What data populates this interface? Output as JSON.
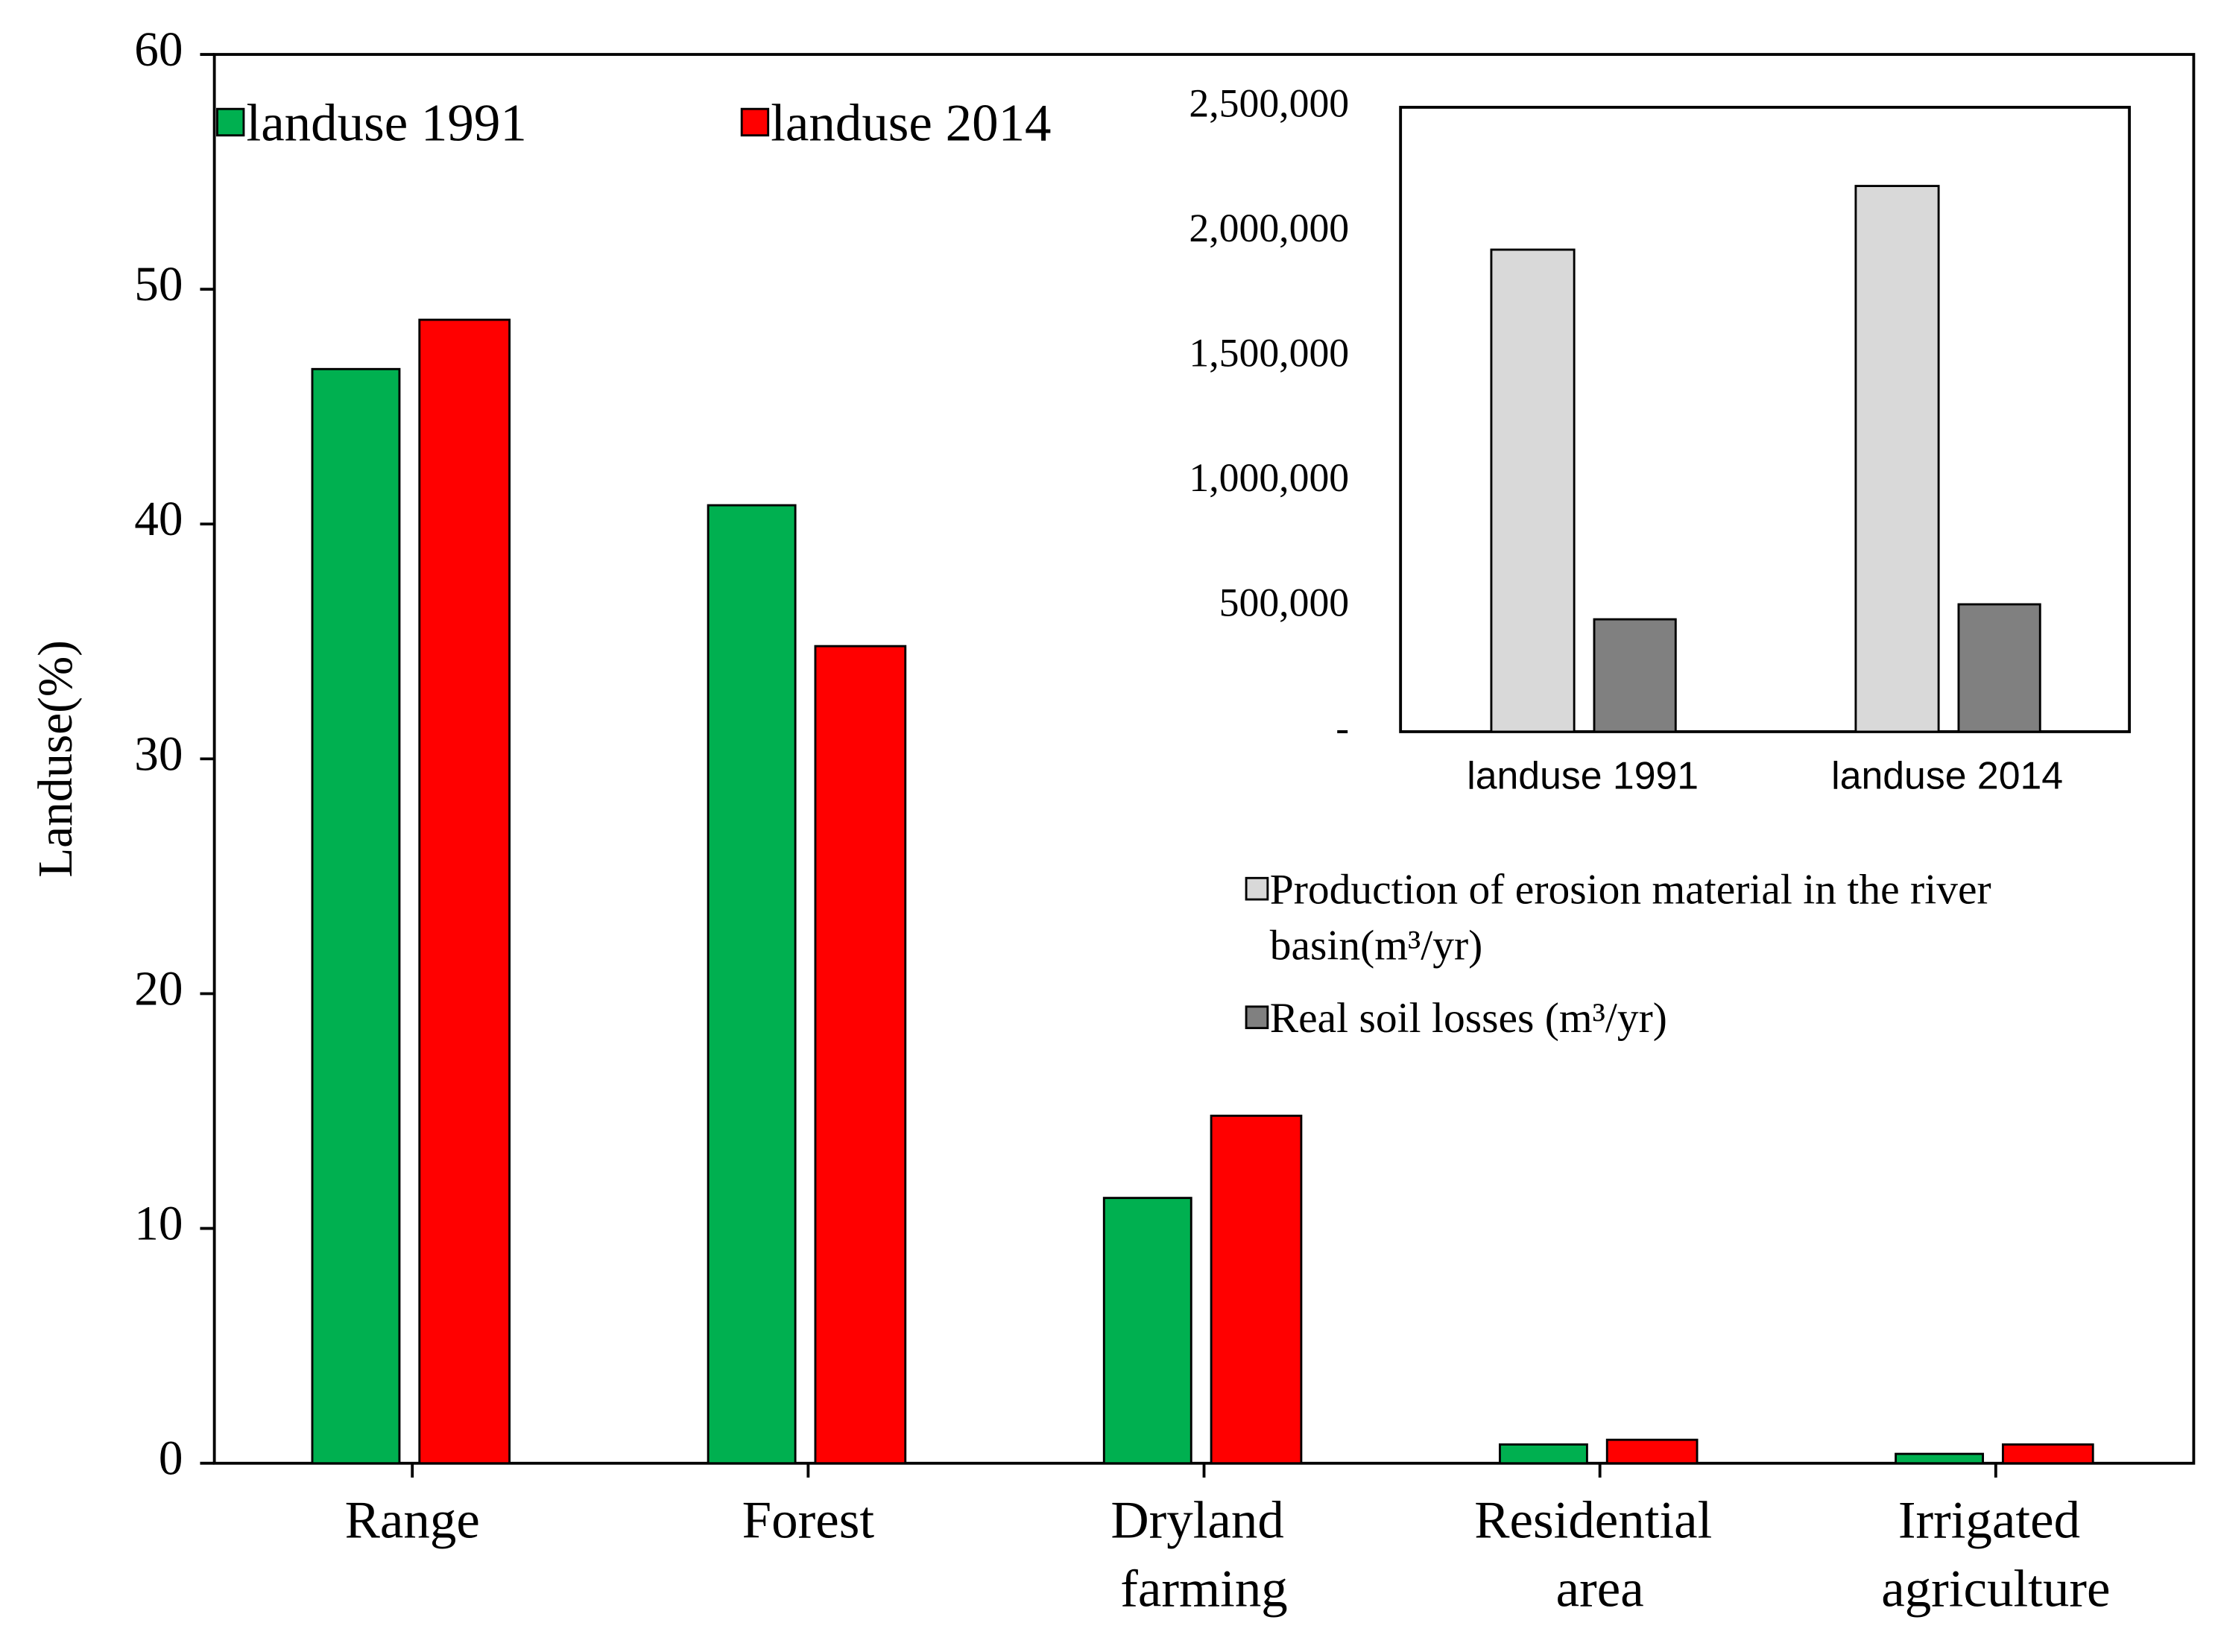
{
  "chart_data": [
    {
      "type": "bar",
      "y_label": "Landuse(%)",
      "categories": [
        "Range",
        "Forest",
        "Dryland farming",
        "Residential area",
        "Irrigated agriculture"
      ],
      "series": [
        {
          "name": "landuse 1991",
          "color": "#00b050",
          "values": [
            46.6,
            40.8,
            11.3,
            0.8,
            0.4
          ]
        },
        {
          "name": "landuse 2014",
          "color": "#ff0000",
          "values": [
            48.7,
            34.8,
            14.8,
            1.0,
            0.8
          ]
        }
      ],
      "ylim": [
        0,
        60
      ],
      "yticks": [
        0,
        10,
        20,
        30,
        40,
        50,
        60
      ],
      "grid": false,
      "legend": "top-left"
    },
    {
      "type": "bar",
      "categories": [
        "landuse 1991",
        "landuse 2014"
      ],
      "series": [
        {
          "name": "Production of erosion material in the river basin(m³/yr)",
          "color": "#d9d9d9",
          "values": [
            1930000,
            2185000
          ]
        },
        {
          "name": "Real soil losses (m³/yr)",
          "color": "#808080",
          "values": [
            450000,
            510000
          ]
        }
      ],
      "ylim": [
        0,
        2500000
      ],
      "yticks": [
        {
          "value": 0,
          "label": "-"
        },
        {
          "value": 500000,
          "label": "500,000"
        },
        {
          "value": 1000000,
          "label": "1,000,000"
        },
        {
          "value": 1500000,
          "label": "1,500,000"
        },
        {
          "value": 2000000,
          "label": "2,000,000"
        },
        {
          "value": 2500000,
          "label": "2,500,000"
        }
      ],
      "grid": false,
      "legend": "bottom"
    }
  ]
}
